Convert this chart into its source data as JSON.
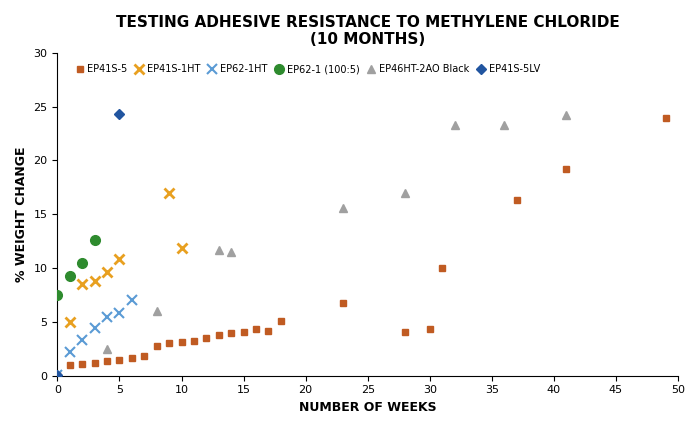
{
  "title": "TESTING ADHESIVE RESISTANCE TO METHYLENE CHLORIDE\n(10 MONTHS)",
  "xlabel": "NUMBER OF WEEKS",
  "ylabel": "% WEIGHT CHANGE",
  "xlim": [
    0,
    50
  ],
  "ylim": [
    0,
    30
  ],
  "xticks": [
    0,
    5,
    10,
    15,
    20,
    25,
    30,
    35,
    40,
    45,
    50
  ],
  "yticks": [
    0,
    5,
    10,
    15,
    20,
    25,
    30
  ],
  "series": {
    "EP41S-5": {
      "color": "#C05B22",
      "marker": "s",
      "markersize": 5,
      "x": [
        0,
        1,
        2,
        3,
        4,
        5,
        6,
        7,
        8,
        9,
        10,
        11,
        12,
        13,
        14,
        15,
        16,
        17,
        18,
        23,
        28,
        30,
        31,
        37,
        41,
        49
      ],
      "y": [
        0.1,
        1.0,
        1.1,
        1.2,
        1.4,
        1.5,
        1.6,
        1.8,
        2.8,
        3.0,
        3.1,
        3.2,
        3.5,
        3.8,
        4.0,
        4.1,
        4.3,
        4.2,
        5.1,
        6.8,
        4.1,
        4.3,
        10.0,
        16.3,
        19.2,
        23.9
      ]
    },
    "EP41S-1HT": {
      "color": "#E8A020",
      "marker": "x",
      "markersize": 7,
      "markeredgewidth": 2,
      "x": [
        1,
        2,
        3,
        4,
        5,
        9,
        10
      ],
      "y": [
        5.0,
        8.5,
        8.8,
        9.6,
        10.8,
        17.0,
        11.9
      ]
    },
    "EP62-1HT": {
      "color": "#5B9BD5",
      "marker": "x",
      "markersize": 7,
      "markeredgewidth": 1.5,
      "x": [
        0,
        1,
        2,
        3,
        4,
        5,
        6
      ],
      "y": [
        0.1,
        2.2,
        3.3,
        4.4,
        5.5,
        5.8,
        7.0
      ]
    },
    "EP62-1 (100:5)": {
      "color": "#2E8B2E",
      "marker": "o",
      "markersize": 7,
      "x": [
        0,
        1,
        2,
        3
      ],
      "y": [
        7.5,
        9.3,
        10.5,
        12.6
      ]
    },
    "EP46HT-2AO Black": {
      "color": "#A0A0A0",
      "marker": "^",
      "markersize": 6,
      "x": [
        4,
        8,
        13,
        14,
        23,
        28,
        32,
        36,
        41
      ],
      "y": [
        2.5,
        6.0,
        11.7,
        11.5,
        15.6,
        17.0,
        23.3,
        23.3,
        24.2
      ]
    },
    "EP41S-5LV": {
      "color": "#2155A0",
      "marker": "D",
      "markersize": 5,
      "x": [
        0,
        5
      ],
      "y": [
        0.1,
        24.3
      ]
    }
  }
}
